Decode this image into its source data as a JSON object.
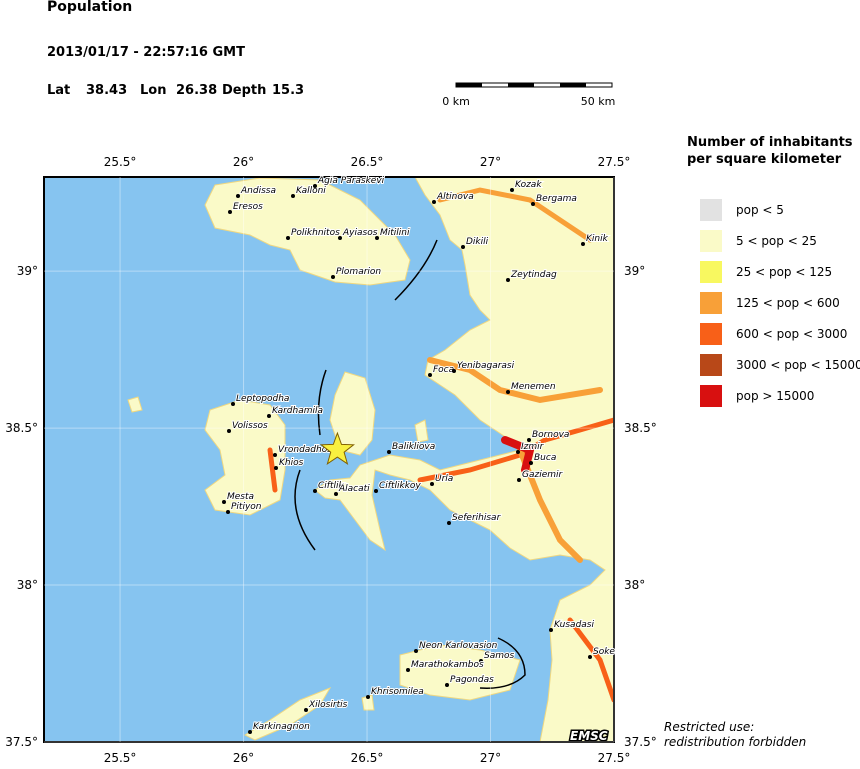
{
  "header": {
    "title": "Population",
    "datetime": "2013/01/17 - 22:57:16 GMT",
    "lat_label": "Lat",
    "lat": 38.43,
    "lon_label": "Lon",
    "lon": 26.38,
    "depth_label": "Depth",
    "depth": 15.3
  },
  "scale_bar": {
    "start": "0 km",
    "end": "50 km"
  },
  "map": {
    "xlim": [
      25.192,
      27.5
    ],
    "ylim": [
      37.5,
      39.3
    ],
    "xticks": [
      {
        "value": 25.5,
        "label": "25.5°"
      },
      {
        "value": 26,
        "label": "26°"
      },
      {
        "value": 26.5,
        "label": "26.5°"
      },
      {
        "value": 27,
        "label": "27°"
      },
      {
        "value": 27.5,
        "label": "27.5°"
      }
    ],
    "yticks": [
      {
        "value": 37.5,
        "label": "37.5°"
      },
      {
        "value": 38,
        "label": "38°"
      },
      {
        "value": 38.5,
        "label": "38.5°"
      },
      {
        "value": 39,
        "label": "39°"
      }
    ],
    "cities": [
      "Andissa",
      "Kalloni",
      "Agia Paraskevi",
      "Eresos",
      "Polikhnitos",
      "Ayiasos",
      "Mitilini",
      "Plomarion",
      "Altinova",
      "Kozak",
      "Bergama",
      "Kinik",
      "Dikili",
      "Zeytindag",
      "Foca",
      "Yenibagarasi",
      "Menemen",
      "Leptopodha",
      "Kardhamila",
      "Volissos",
      "Vrondadhos",
      "Khios",
      "Mesta",
      "Pitiyon",
      "Ciftlik",
      "Alacati",
      "Ciftlikkoy",
      "Balikliova",
      "Urla",
      "Izmir",
      "Bornova",
      "Buca",
      "Gaziemir",
      "Seferihisar",
      "Kusadasi",
      "Soke",
      "Neon Karlovasion",
      "Samos",
      "Marathokambos",
      "Pagondas",
      "Khrisomilea",
      "Xilosirtis",
      "Karkinagrion"
    ],
    "badge": "EMSC"
  },
  "legend": {
    "title": [
      "Number of inhabitants",
      "per square kilometer"
    ],
    "entries": [
      {
        "label": "pop < 5",
        "color": "#e2e2e2"
      },
      {
        "label": "5 < pop < 25",
        "color": "#fafac8"
      },
      {
        "label": "25 < pop < 125",
        "color": "#f8f860"
      },
      {
        "label": "125 < pop < 600",
        "color": "#f8a038"
      },
      {
        "label": "600 < pop < 3000",
        "color": "#f86018"
      },
      {
        "label": "3000 < pop < 15000",
        "color": "#b84818"
      },
      {
        "label": "pop > 15000",
        "color": "#d81010"
      }
    ]
  },
  "footnote": [
    "Restricted use:",
    "redistribution forbidden"
  ]
}
